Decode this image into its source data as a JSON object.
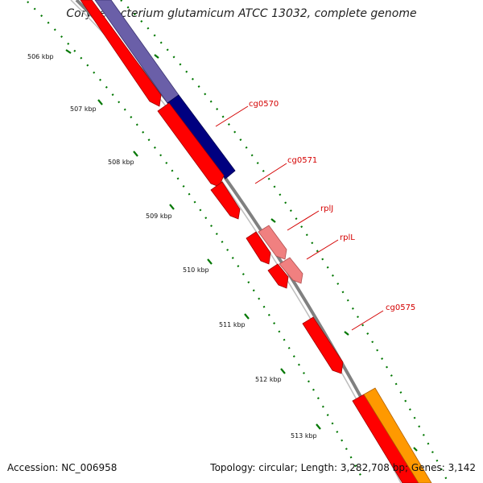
{
  "title": "Corynebacterium glutamicum ATCC 13032, complete genome",
  "footer": {
    "accession_label": "Accession:",
    "accession": "NC_006958",
    "topology_label": "Topology:",
    "topology": "circular",
    "length_label": "Length:",
    "length": "3,282,708 bp",
    "genes_label": "Genes:",
    "genes": "3,142"
  },
  "ticks": [
    "506 kbp",
    "507 kbp",
    "508 kbp",
    "509 kbp",
    "510 kbp",
    "511 kbp",
    "512 kbp",
    "513 kbp"
  ],
  "gene_labels": [
    "cg0570",
    "cg0571",
    "rplJ",
    "rplL",
    "cg0575"
  ],
  "colors": {
    "cds": "#ff0000",
    "rrna_light": "#f08080",
    "blue_band": "#000080",
    "blue_band_light": "#6a5fa8",
    "orange_band": "#ff9900",
    "backbone": "#808080",
    "tick": "#007700",
    "label": "#d40000"
  }
}
